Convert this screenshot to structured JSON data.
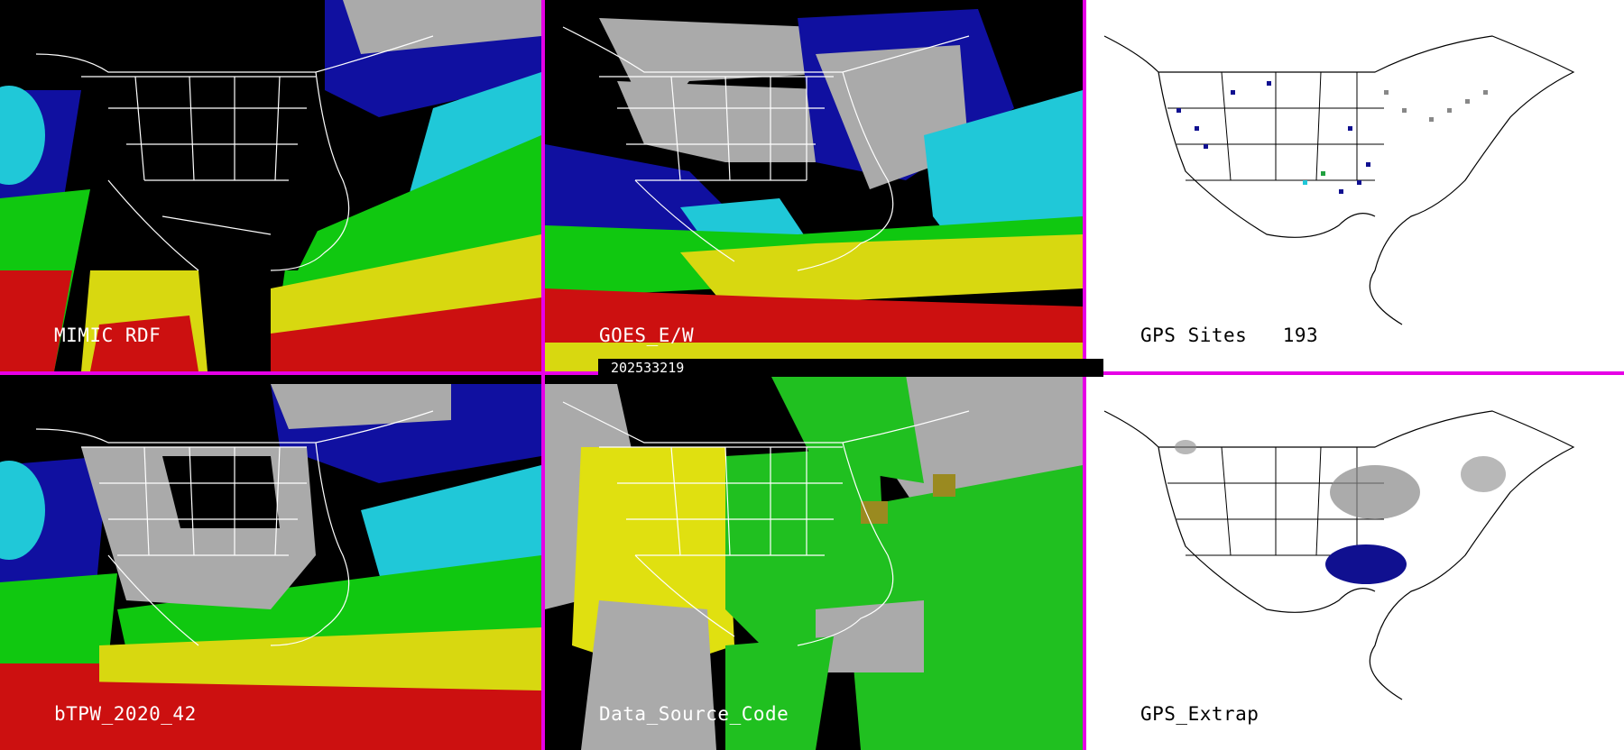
{
  "colors": {
    "divider": "#e600e6",
    "water_vapor_scale": [
      "#000000",
      "#1010a0",
      "#20c8d8",
      "#10c810",
      "#d8d810",
      "#cc1010"
    ],
    "source_code_scale": [
      "#aaaaaa",
      "#e0e010",
      "#20c020",
      "#9a8a20"
    ],
    "gps_markers": [
      "#101090",
      "#20c8d8",
      "#20a040",
      "#888888"
    ]
  },
  "panels": [
    {
      "id": "mimic",
      "label": "MIMIC RDF",
      "background": "black"
    },
    {
      "id": "goes",
      "label": "GOES_E/W",
      "background": "black"
    },
    {
      "id": "gps-sites",
      "label": "GPS Sites   193",
      "background": "white"
    },
    {
      "id": "btpw",
      "label": "bTPW_2020_42",
      "background": "black"
    },
    {
      "id": "source-code",
      "label": "Data_Source_Code",
      "background": "black"
    },
    {
      "id": "gps-extrap",
      "label": "GPS_Extrap",
      "background": "white"
    }
  ],
  "timestamp": "202533219"
}
